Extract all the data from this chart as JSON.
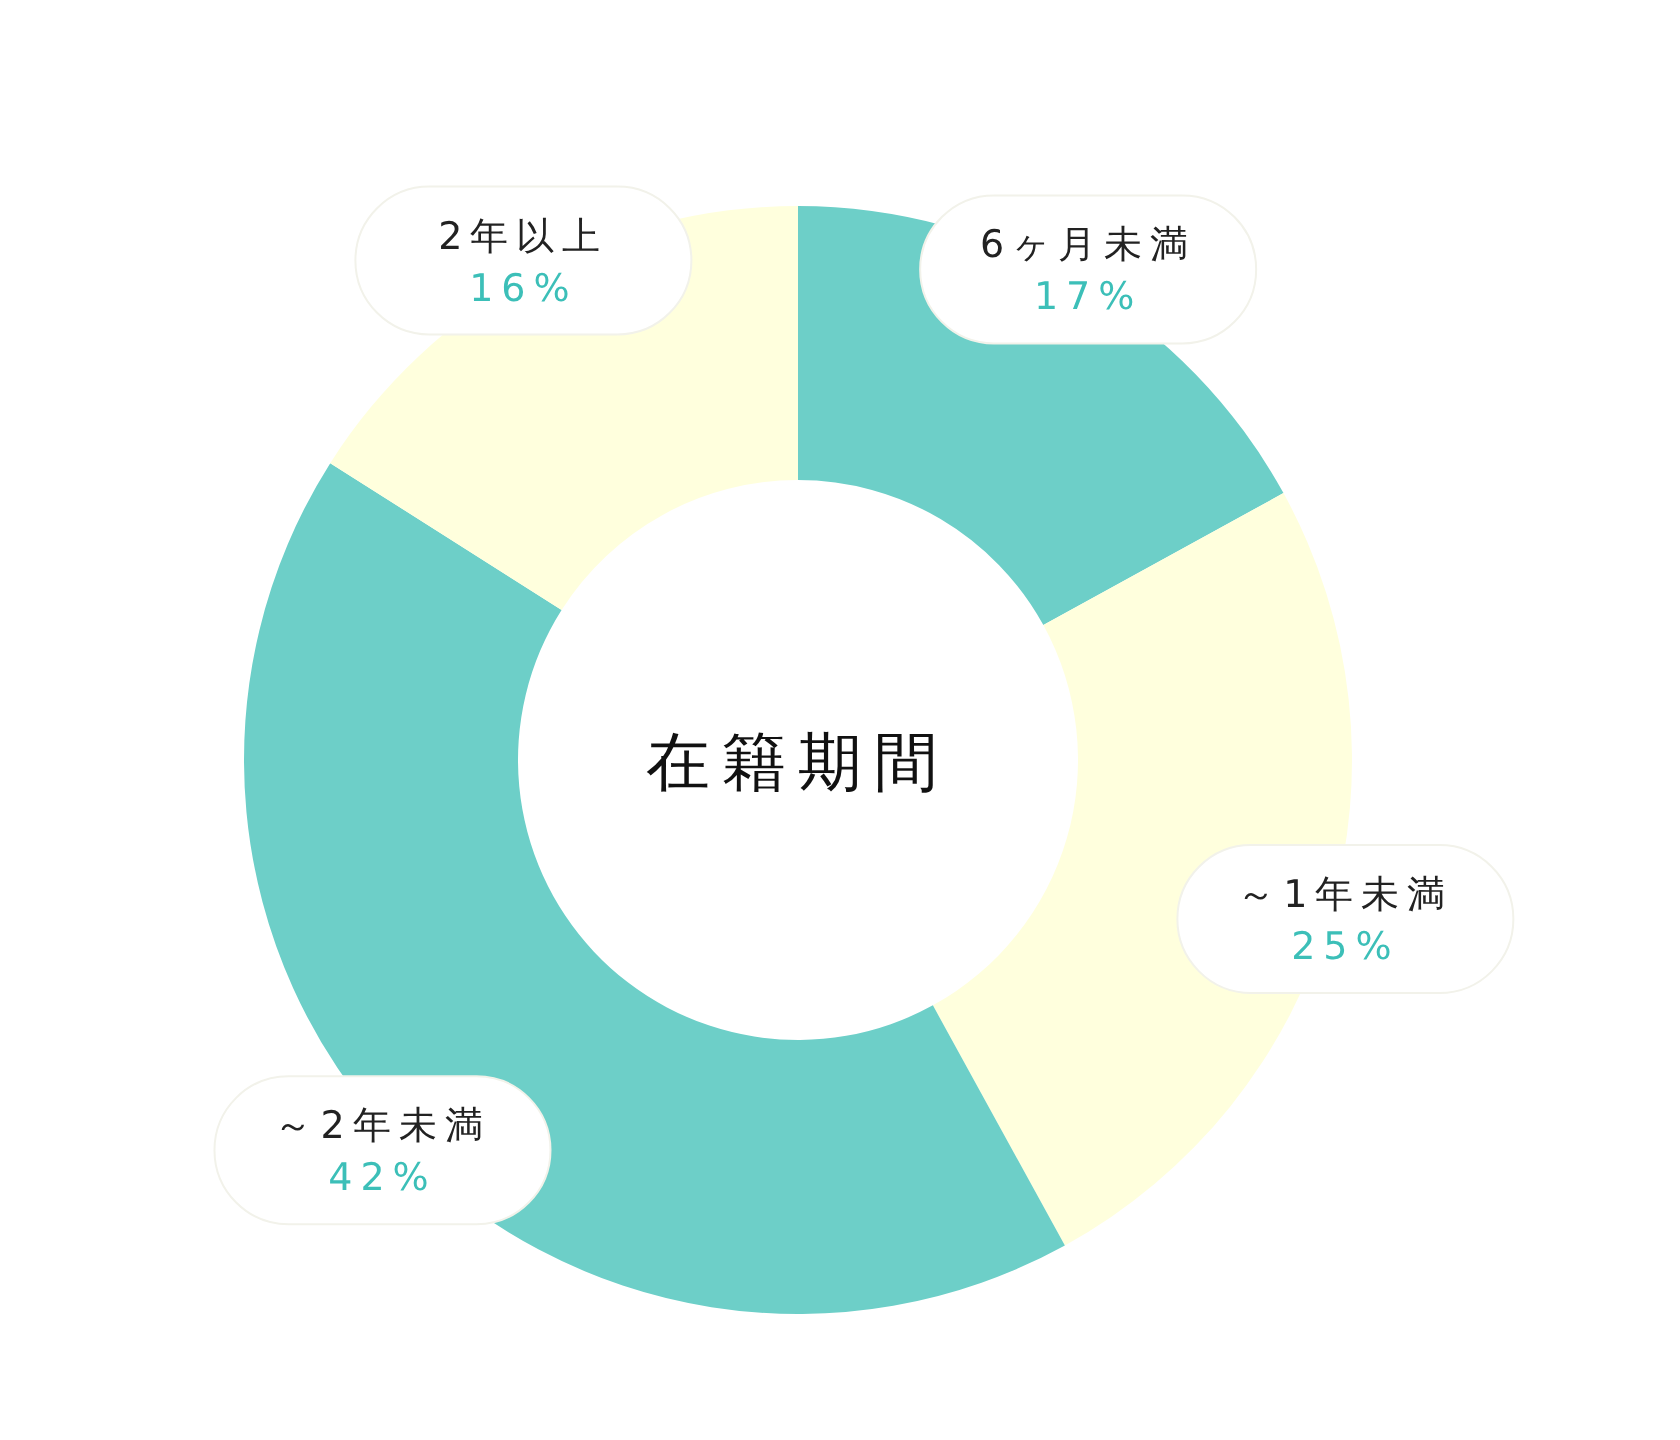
{
  "chart_data": {
    "type": "donut",
    "title": "在籍期間",
    "categories": [
      "6ヶ月未満",
      "～1年未満",
      "～2年未満",
      "2年以上"
    ],
    "values": [
      17,
      25,
      42,
      16
    ],
    "colors": [
      "#6dcfc8",
      "#ffffdd",
      "#6dcfc8",
      "#ffffdd"
    ],
    "value_labels": [
      "17%",
      "25%",
      "42%",
      "16%"
    ]
  }
}
